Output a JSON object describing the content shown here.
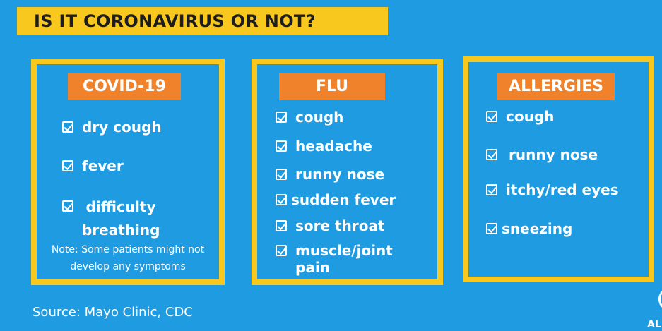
{
  "title": "IS IT CORONAVIRUS OR NOT?",
  "columns": [
    {
      "heading": "COVID-19",
      "items": [
        "dry cough",
        "fever",
        "difficulty breathing"
      ],
      "note": "Note: Some patients might not develop any symptoms"
    },
    {
      "heading": "FLU",
      "items": [
        "cough",
        "headache",
        "runny nose",
        "sudden fever",
        "sore throat",
        "muscle/joint pain"
      ]
    },
    {
      "heading": "ALLERGIES",
      "items": [
        "cough",
        "runny nose",
        "itchy/red eyes",
        "sneezing"
      ]
    }
  ],
  "source": "Source: Mayo Clinic, CDC",
  "logo_text": "AL",
  "colors": {
    "background": "#1f9be2",
    "accent_yellow": "#f8c81f",
    "heading_orange": "#f0822b"
  },
  "icons": {
    "item": "checkbox-checked-icon"
  }
}
